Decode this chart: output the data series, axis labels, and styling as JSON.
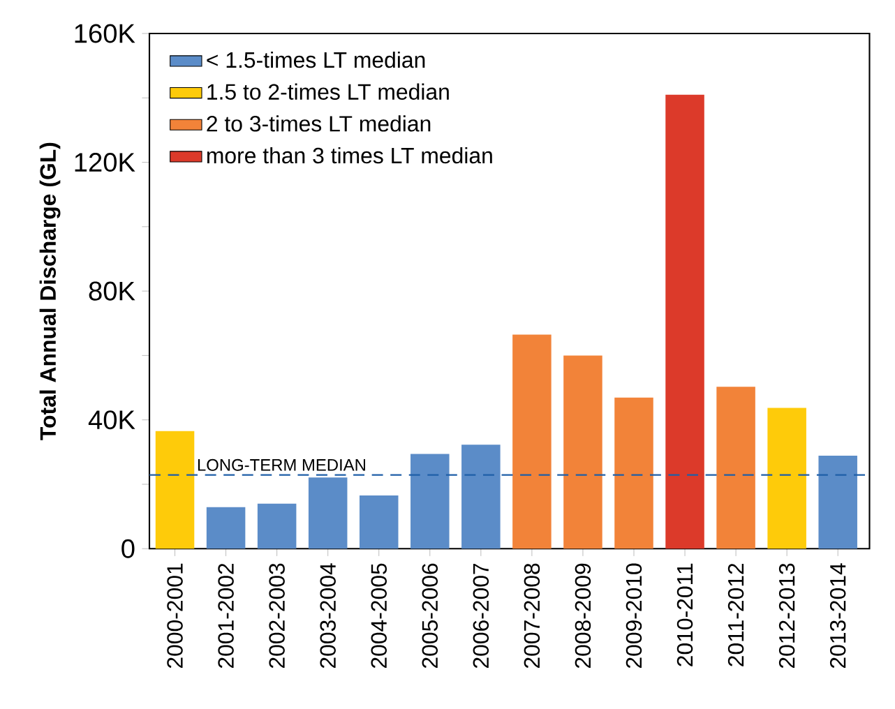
{
  "chart_data": {
    "type": "bar",
    "ylabel": "Total Annual Discharge (GL)",
    "categories": [
      "2000-2001",
      "2001-2002",
      "2002-2003",
      "2003-2004",
      "2004-2005",
      "2005-2006",
      "2006-2007",
      "2007-2008",
      "2008-2009",
      "2009-2010",
      "2010-2011",
      "2011-2012",
      "2012-2013",
      "2013-2014"
    ],
    "series": [
      {
        "name": "< 1.5-times LT median",
        "color": "#5b8cc8",
        "values": [
          null,
          12900,
          14000,
          22100,
          16500,
          29400,
          32300,
          null,
          null,
          null,
          null,
          null,
          null,
          28900
        ]
      },
      {
        "name": "1.5 to 2-times LT median",
        "color": "#fecb0a",
        "values": [
          36500,
          null,
          null,
          null,
          null,
          null,
          null,
          null,
          null,
          null,
          null,
          null,
          43700,
          null
        ]
      },
      {
        "name": "2 to 3-times LT median",
        "color": "#f28339",
        "values": [
          null,
          null,
          null,
          null,
          null,
          null,
          null,
          66500,
          60000,
          46900,
          null,
          50300,
          null,
          null
        ]
      },
      {
        "name": "more than 3 times LT median",
        "color": "#dc3a2a",
        "values": [
          null,
          null,
          null,
          null,
          null,
          null,
          null,
          null,
          null,
          null,
          141000,
          null,
          null,
          null
        ]
      }
    ],
    "ylim": [
      0,
      160000
    ],
    "yticks": [
      {
        "value": 0,
        "label": "0"
      },
      {
        "value": 20000,
        "label": null
      },
      {
        "value": 40000,
        "label": "40K"
      },
      {
        "value": 60000,
        "label": null
      },
      {
        "value": 80000,
        "label": "80K"
      },
      {
        "value": 100000,
        "label": null
      },
      {
        "value": 120000,
        "label": "120K"
      },
      {
        "value": 140000,
        "label": null
      },
      {
        "value": 160000,
        "label": "160K"
      }
    ],
    "ref_lines": [
      {
        "axis": "y",
        "value": 22900,
        "label": "LONG-TERM MEDIAN",
        "color": "#1f5fa8",
        "line_style": "dashed"
      }
    ],
    "legend": "top left",
    "grid": false
  }
}
